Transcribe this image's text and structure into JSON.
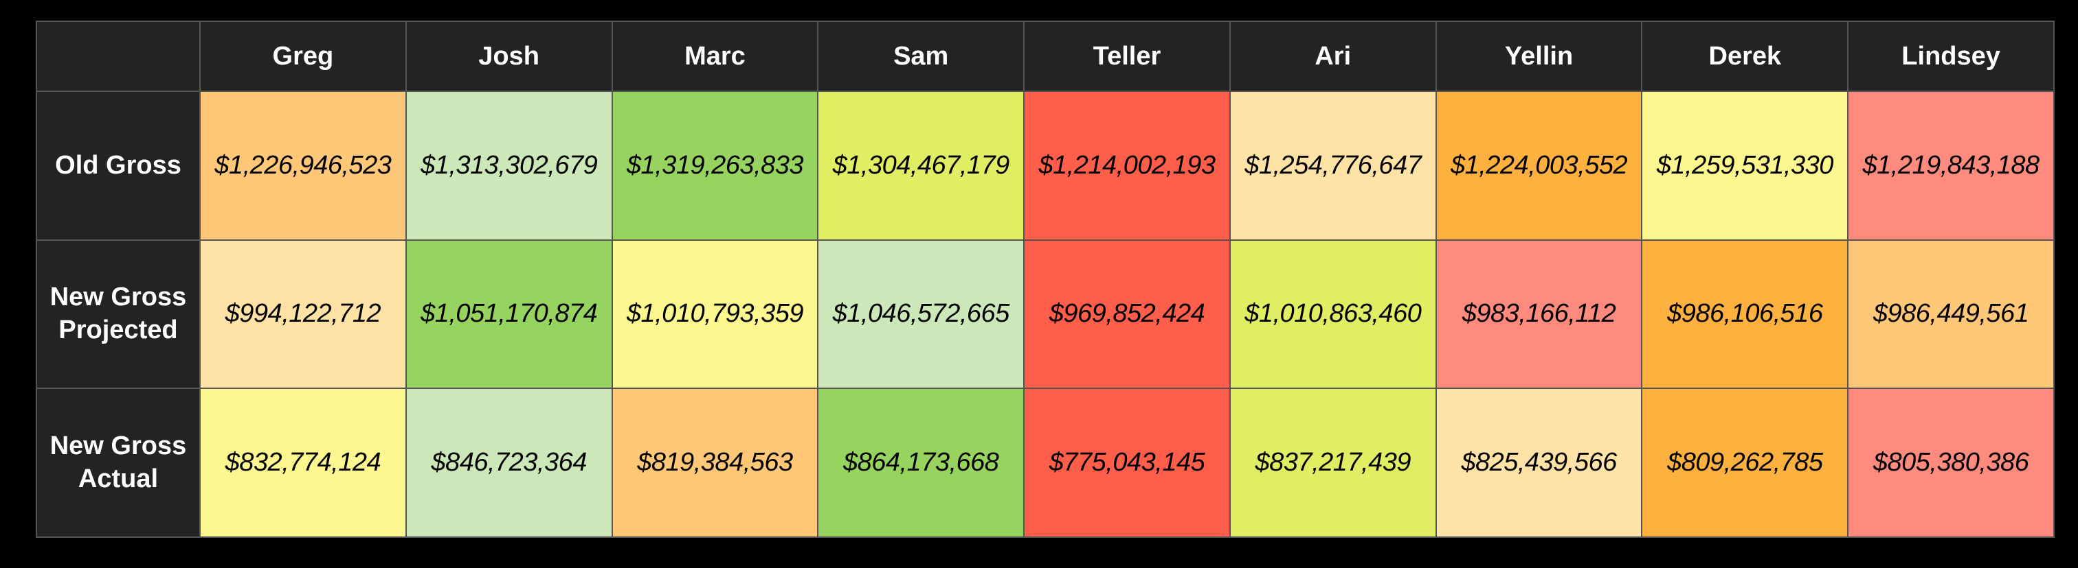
{
  "colors": {
    "scale": [
      "#ff5f4a",
      "#ff8a7e",
      "#ffb140",
      "#ffc878",
      "#ffe2a5",
      "#fdf790",
      "#e1ee63",
      "#cde8b8",
      "#97d45f"
    ],
    "header_bg": "#232323",
    "header_text": "#ffffff"
  },
  "chart_data": {
    "type": "table",
    "columns": [
      "Greg",
      "Josh",
      "Marc",
      "Sam",
      "Teller",
      "Ari",
      "Yellin",
      "Derek",
      "Lindsey"
    ],
    "rows": [
      {
        "label": "Old Gross",
        "values": [
          "$1,226,946,523",
          "$1,313,302,679",
          "$1,319,263,833",
          "$1,304,467,179",
          "$1,214,002,193",
          "$1,254,776,647",
          "$1,224,003,552",
          "$1,259,531,330",
          "$1,219,843,188"
        ],
        "color_rank": [
          3,
          7,
          8,
          6,
          0,
          4,
          2,
          5,
          1
        ]
      },
      {
        "label": "New Gross\nProjected",
        "values": [
          "$994,122,712",
          "$1,051,170,874",
          "$1,010,793,359",
          "$1,046,572,665",
          "$969,852,424",
          "$1,010,863,460",
          "$983,166,112",
          "$986,106,516",
          "$986,449,561"
        ],
        "color_rank": [
          4,
          8,
          5,
          7,
          0,
          6,
          1,
          2,
          3
        ]
      },
      {
        "label": "New Gross\nActual",
        "values": [
          "$832,774,124",
          "$846,723,364",
          "$819,384,563",
          "$864,173,668",
          "$775,043,145",
          "$837,217,439",
          "$825,439,566",
          "$809,262,785",
          "$805,380,386"
        ],
        "color_rank": [
          5,
          7,
          3,
          8,
          0,
          6,
          4,
          2,
          1
        ]
      }
    ]
  }
}
